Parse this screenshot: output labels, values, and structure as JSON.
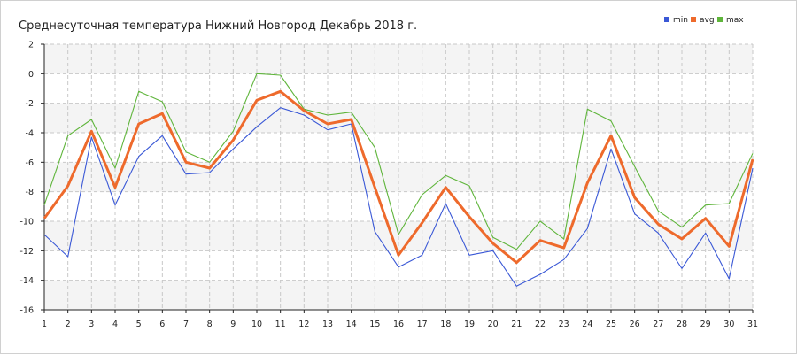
{
  "chart_data": {
    "type": "line",
    "title": "Среднесуточная температура Нижний Новгород  Декабрь 2018 г.",
    "xlabel": "",
    "ylabel": "",
    "categories": [
      1,
      2,
      3,
      4,
      5,
      6,
      7,
      8,
      9,
      10,
      11,
      12,
      13,
      14,
      15,
      16,
      17,
      18,
      19,
      20,
      21,
      22,
      23,
      24,
      25,
      26,
      27,
      28,
      29,
      30,
      31
    ],
    "xlim": [
      1,
      31
    ],
    "ylim": [
      -16,
      2
    ],
    "yticks": [
      2,
      0,
      -2,
      -4,
      -6,
      -8,
      -10,
      -12,
      -14,
      -16
    ],
    "grid": true,
    "legend_position": "top-right",
    "series": [
      {
        "name": "min",
        "color": "#3a58d6",
        "values": [
          -10.9,
          -12.4,
          -4.3,
          -8.9,
          -5.6,
          -4.2,
          -6.8,
          -6.7,
          -5.1,
          -3.6,
          -2.3,
          -2.8,
          -3.8,
          -3.4,
          -10.7,
          -13.1,
          -12.3,
          -8.8,
          -12.3,
          -12.0,
          -14.4,
          -13.6,
          -12.6,
          -10.5,
          -5.1,
          -9.5,
          -10.8,
          -13.2,
          -10.8,
          -13.9,
          -6.4
        ]
      },
      {
        "name": "avg",
        "color": "#ee6a2c",
        "values": [
          -9.8,
          -7.6,
          -3.9,
          -7.7,
          -3.4,
          -2.7,
          -6.0,
          -6.4,
          -4.5,
          -1.8,
          -1.2,
          -2.5,
          -3.4,
          -3.1,
          -7.7,
          -12.3,
          -10.1,
          -7.7,
          -9.7,
          -11.5,
          -12.8,
          -11.3,
          -11.8,
          -7.4,
          -4.2,
          -8.4,
          -10.2,
          -11.2,
          -9.8,
          -11.7,
          -5.8
        ]
      },
      {
        "name": "max",
        "color": "#5fb53b",
        "values": [
          -8.9,
          -4.2,
          -3.1,
          -6.4,
          -1.2,
          -1.9,
          -5.3,
          -6.0,
          -3.9,
          0.0,
          -0.1,
          -2.4,
          -2.8,
          -2.6,
          -5.0,
          -10.9,
          -8.2,
          -6.9,
          -7.6,
          -11.1,
          -11.9,
          -10.0,
          -11.2,
          -2.4,
          -3.2,
          -6.3,
          -9.3,
          -10.4,
          -8.9,
          -8.8,
          -5.4
        ]
      }
    ]
  }
}
